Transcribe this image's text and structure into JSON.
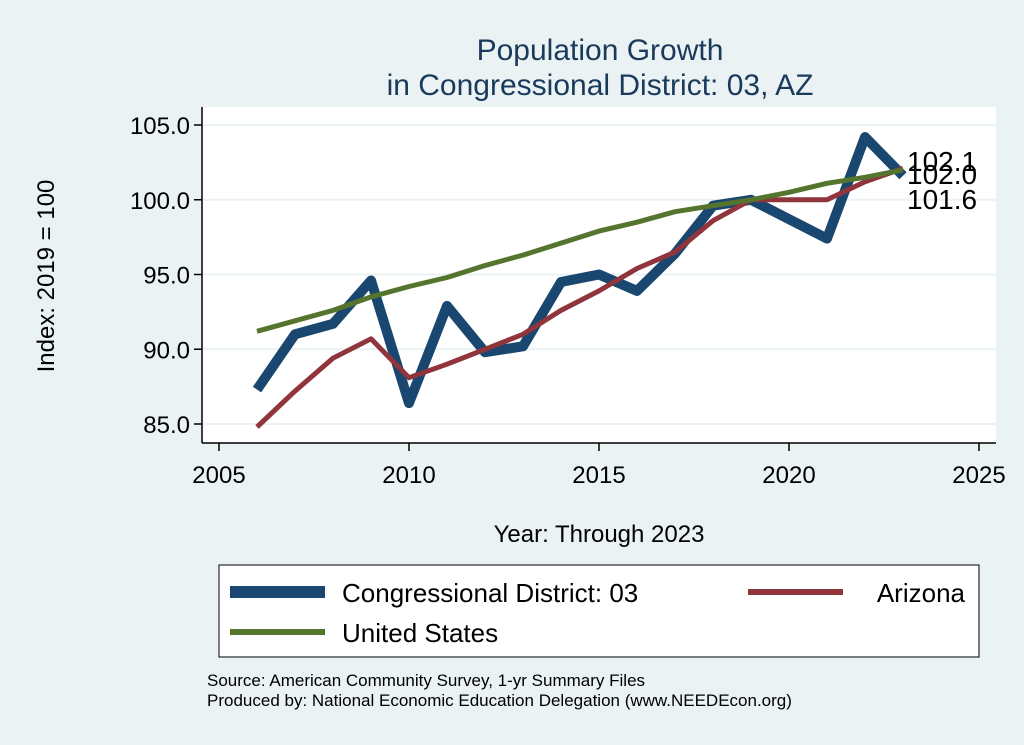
{
  "chart_data": {
    "type": "line",
    "title": [
      "Population Growth",
      "in Congressional District: 03, AZ"
    ],
    "xlabel": "Year: Through 2023",
    "ylabel": "Index: 2019 = 100",
    "xlim": [
      2005,
      2025
    ],
    "ylim": [
      85,
      105
    ],
    "x_ticks": [
      "2005",
      "2010",
      "2015",
      "2020",
      "2025"
    ],
    "y_ticks": [
      "85.0",
      "90.0",
      "95.0",
      "100.0",
      "105.0"
    ],
    "grid": true,
    "legend_position": "bottom",
    "x": [
      2006,
      2007,
      2008,
      2009,
      2010,
      2011,
      2012,
      2013,
      2014,
      2015,
      2016,
      2017,
      2018,
      2019,
      2020,
      2021,
      2022,
      2023
    ],
    "series": [
      {
        "name": "Congressional District: 03",
        "color": "#1a476f",
        "values": [
          87.3,
          91.0,
          91.7,
          94.6,
          86.4,
          92.9,
          89.8,
          90.2,
          94.5,
          95.0,
          93.9,
          96.4,
          99.6,
          100.0,
          98.7,
          97.4,
          104.2,
          101.6
        ]
      },
      {
        "name": "Arizona",
        "color": "#90353b",
        "values": [
          84.8,
          87.2,
          89.4,
          90.7,
          88.1,
          89.0,
          90.0,
          91.0,
          92.6,
          93.9,
          95.4,
          96.5,
          98.6,
          100.0,
          100.0,
          100.0,
          101.2,
          102.1
        ]
      },
      {
        "name": "United States",
        "color": "#55752f",
        "values": [
          91.2,
          91.9,
          92.6,
          93.5,
          94.2,
          94.8,
          95.6,
          96.3,
          97.1,
          97.9,
          98.5,
          99.2,
          99.6,
          100.0,
          100.5,
          101.1,
          101.5,
          102.0
        ]
      }
    ],
    "end_labels": [
      "102.1",
      "102.0",
      "101.6"
    ]
  },
  "footer": {
    "source": "Source: American Community Survey, 1-yr Summary Files",
    "produced": "Produced by: National Economic Education Delegation (www.NEEDEcon.org)"
  }
}
